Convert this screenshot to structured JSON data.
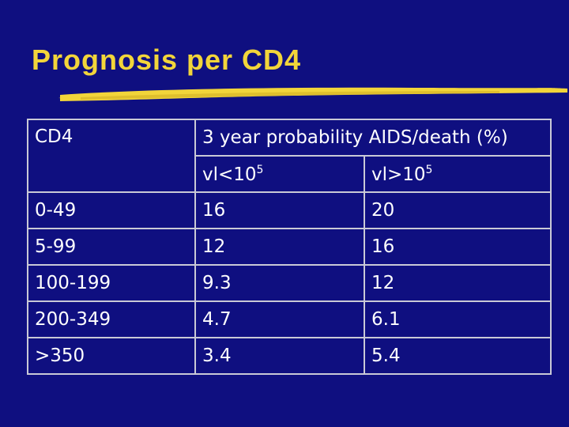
{
  "slide": {
    "title": "Prognosis per CD4",
    "accent_color": "#f2d53a",
    "background_color": "#0f0f80"
  },
  "table": {
    "header_col1": "CD4",
    "header_span": "3 year probability AIDS/death (%)",
    "sub_header_a": {
      "base": "vl<10",
      "exp": "5"
    },
    "sub_header_b": {
      "base": "vl>10",
      "exp": "5"
    },
    "rows": [
      {
        "cd4": "0-49",
        "low": "16",
        "high": "20"
      },
      {
        "cd4": "5-99",
        "low": "12",
        "high": "16"
      },
      {
        "cd4": "100-199",
        "low": "9.3",
        "high": "12"
      },
      {
        "cd4": "200-349",
        "low": "4.7",
        "high": "6.1"
      },
      {
        "cd4": ">350",
        "low": "3.4",
        "high": "5.4"
      }
    ]
  }
}
